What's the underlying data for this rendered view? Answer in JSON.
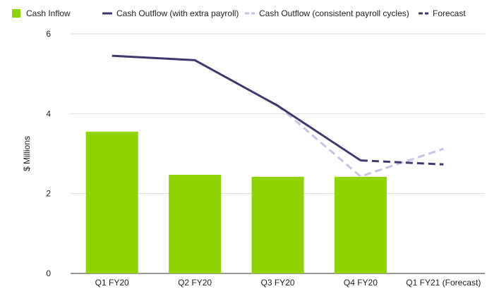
{
  "chart_data": {
    "type": "bar",
    "categories": [
      "Q1 FY20",
      "Q2 FY20",
      "Q3 FY20",
      "Q4 FY20",
      "Q1 FY21 (Forecast)"
    ],
    "ylabel": "$ Millions",
    "xlabel": "",
    "ylim": [
      0,
      6
    ],
    "yticks": [
      0,
      2,
      4,
      6
    ],
    "grid": true,
    "legend_position": "top-left",
    "series": [
      {
        "name": "Cash Inflow",
        "kind": "bar",
        "color": "#8fd400",
        "values": [
          3.55,
          2.47,
          2.42,
          2.42,
          null
        ]
      },
      {
        "name": "Cash Outflow (with extra payroll)",
        "kind": "line",
        "style": "solid",
        "color": "#3d3a6e",
        "values": [
          5.45,
          5.34,
          4.2,
          2.83,
          null
        ]
      },
      {
        "name": "Cash Outflow (consistent payroll cycles)",
        "kind": "line",
        "style": "dashed",
        "color": "#c8c4e4",
        "values": [
          null,
          null,
          4.2,
          2.43,
          3.12
        ]
      },
      {
        "name": "Forecast",
        "kind": "line",
        "style": "dashed",
        "color": "#3d3a6e",
        "values": [
          null,
          null,
          null,
          2.83,
          2.73
        ]
      }
    ]
  }
}
